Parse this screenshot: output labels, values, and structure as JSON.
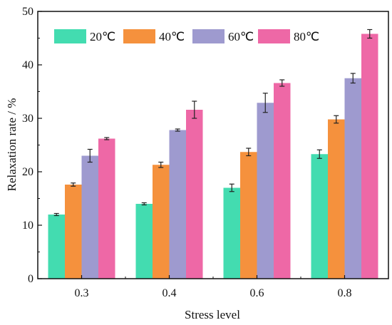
{
  "chart_data": {
    "type": "bar",
    "title": "",
    "xlabel": "Stress level",
    "ylabel": "Relaxation rate / %",
    "ylim": [
      0,
      50
    ],
    "yticks": [
      0,
      10,
      20,
      30,
      40,
      50
    ],
    "categories": [
      "0.3",
      "0.4",
      "0.6",
      "0.8"
    ],
    "series": [
      {
        "name": "20℃",
        "color": "#43dcb0",
        "values": [
          12.0,
          14.0,
          17.0,
          23.3
        ],
        "errors": [
          0.2,
          0.2,
          0.7,
          0.8
        ]
      },
      {
        "name": "40℃",
        "color": "#f5913d",
        "values": [
          17.6,
          21.3,
          23.7,
          29.8
        ],
        "errors": [
          0.3,
          0.5,
          0.7,
          0.7
        ]
      },
      {
        "name": "60℃",
        "color": "#9e9acf",
        "values": [
          23.0,
          27.8,
          32.9,
          37.5
        ],
        "errors": [
          1.2,
          0.2,
          1.8,
          0.9
        ]
      },
      {
        "name": "80℃",
        "color": "#ee68a6",
        "values": [
          26.2,
          31.6,
          36.6,
          45.8
        ],
        "errors": [
          0.2,
          1.6,
          0.6,
          0.8
        ]
      }
    ],
    "legend_position": "top-left",
    "grid": false
  }
}
